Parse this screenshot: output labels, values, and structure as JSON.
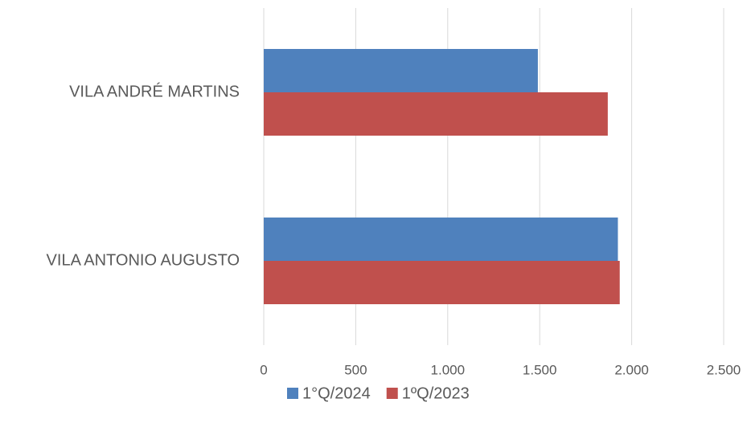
{
  "chart_data": {
    "type": "bar",
    "orientation": "horizontal",
    "categories": [
      "VILA ANDRÉ MARTINS",
      "VILA ANTONIO AUGUSTO"
    ],
    "series": [
      {
        "name": "1°Q/2024",
        "color": "#4f81bd",
        "values": [
          1490,
          1925
        ]
      },
      {
        "name": "1ºQ/2023",
        "color": "#c0504d",
        "values": [
          1870,
          1935
        ]
      }
    ],
    "xlim": [
      0,
      2500
    ],
    "xticks": [
      0,
      500,
      {
        "value": 1000,
        "label": "1.000"
      },
      {
        "value": 1500,
        "label": "1.500"
      },
      {
        "value": 2000,
        "label": "2.000"
      },
      {
        "value": 2500,
        "label": "2.500"
      }
    ],
    "grid": true,
    "legend": "bottom"
  }
}
